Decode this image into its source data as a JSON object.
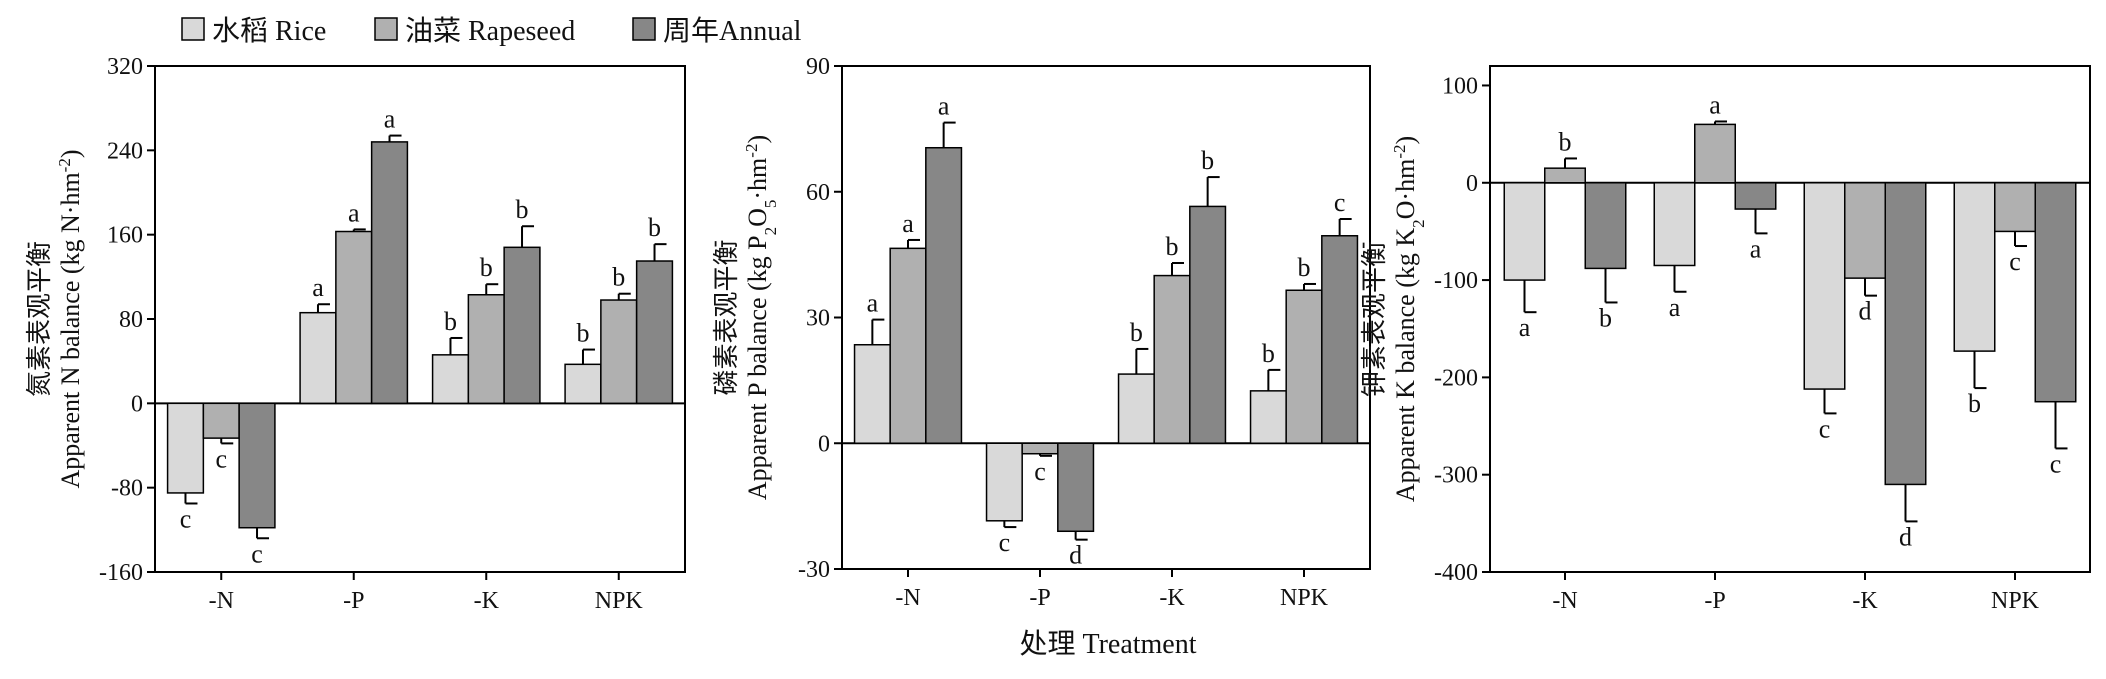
{
  "figure": {
    "xlabel": "处理 Treatment",
    "legend_position": "top-left"
  },
  "legend": [
    {
      "label": "水稻 Rice",
      "color": "#d9d9d9"
    },
    {
      "label": "油菜 Rapeseed",
      "color": "#b0b0b0"
    },
    {
      "label": "周年Annual",
      "color": "#878787"
    }
  ],
  "chart_data": [
    {
      "type": "bar",
      "ylabel_cn": "氮素表观平衡",
      "ylabel_en": "Apparent N balance (kg N·hm",
      "ylabel_sup": "-2",
      "ylabel_end": ")",
      "ylim": [
        -160,
        320
      ],
      "yticks": [
        -160,
        -80,
        0,
        80,
        160,
        240,
        320
      ],
      "categories": [
        "-N",
        "-P",
        "-K",
        "NPK"
      ],
      "series": [
        {
          "name": "水稻 Rice",
          "values": [
            -85,
            86,
            46,
            37
          ],
          "errors": [
            10,
            8,
            16,
            14
          ],
          "letters": [
            "c",
            "a",
            "b",
            "b"
          ]
        },
        {
          "name": "油菜 Rapeseed",
          "values": [
            -33,
            163,
            103,
            98
          ],
          "errors": [
            5,
            2,
            10,
            6
          ],
          "letters": [
            "c",
            "a",
            "b",
            "b"
          ]
        },
        {
          "name": "周年Annual",
          "values": [
            -118,
            248,
            148,
            135
          ],
          "errors": [
            10,
            6,
            20,
            16
          ],
          "letters": [
            "c",
            "a",
            "b",
            "b"
          ]
        }
      ]
    },
    {
      "type": "bar",
      "ylabel_cn": "磷素表观平衡",
      "ylabel_en": "Apparent P balance (kg P",
      "ylabel_sub1": "2",
      "ylabel_mid": "O",
      "ylabel_sub2": "5",
      "ylabel_mid2": "·hm",
      "ylabel_sup": "-2",
      "ylabel_end": ")",
      "ylim": [
        -30,
        90
      ],
      "yticks": [
        -30,
        0,
        30,
        60,
        90
      ],
      "categories": [
        "-N",
        "-P",
        "-K",
        "NPK"
      ],
      "series": [
        {
          "name": "水稻 Rice",
          "values": [
            23.5,
            -18.5,
            16.5,
            12.5
          ],
          "errors": [
            6,
            1.5,
            6,
            5
          ],
          "letters": [
            "a",
            "c",
            "b",
            "b"
          ]
        },
        {
          "name": "油菜 Rapeseed",
          "values": [
            46.5,
            -2.5,
            40,
            36.5
          ],
          "errors": [
            2,
            0.5,
            3,
            1.5
          ],
          "letters": [
            "a",
            "c",
            "b",
            "b"
          ]
        },
        {
          "name": "周年Annual",
          "values": [
            70.5,
            -21,
            56.5,
            49.5
          ],
          "errors": [
            6,
            2,
            7,
            4
          ],
          "letters": [
            "a",
            "d",
            "b",
            "c"
          ]
        }
      ]
    },
    {
      "type": "bar",
      "ylabel_cn": "钾素表观平衡",
      "ylabel_en": "Apparent K balance (kg K",
      "ylabel_sub1": "2",
      "ylabel_mid": "O·hm",
      "ylabel_sup": "-2",
      "ylabel_end": ")",
      "ylim": [
        -400,
        120
      ],
      "yticks": [
        -400,
        -300,
        -200,
        -100,
        0,
        100
      ],
      "categories": [
        "-N",
        "-P",
        "-K",
        "NPK"
      ],
      "series": [
        {
          "name": "水稻 Rice",
          "values": [
            -100,
            -85,
            -212,
            -173
          ],
          "errors": [
            33,
            27,
            25,
            38
          ],
          "letters": [
            "a",
            "a",
            "c",
            "b"
          ]
        },
        {
          "name": "油菜 Rapeseed",
          "values": [
            15,
            60,
            -98,
            -50
          ],
          "errors": [
            10,
            3,
            18,
            15
          ],
          "letters": [
            "b",
            "a",
            "d",
            "c"
          ]
        },
        {
          "name": "周年Annual",
          "values": [
            -88,
            -27,
            -310,
            -225
          ],
          "errors": [
            35,
            25,
            38,
            48
          ],
          "letters": [
            "b",
            "a",
            "d",
            "c"
          ]
        }
      ]
    }
  ]
}
